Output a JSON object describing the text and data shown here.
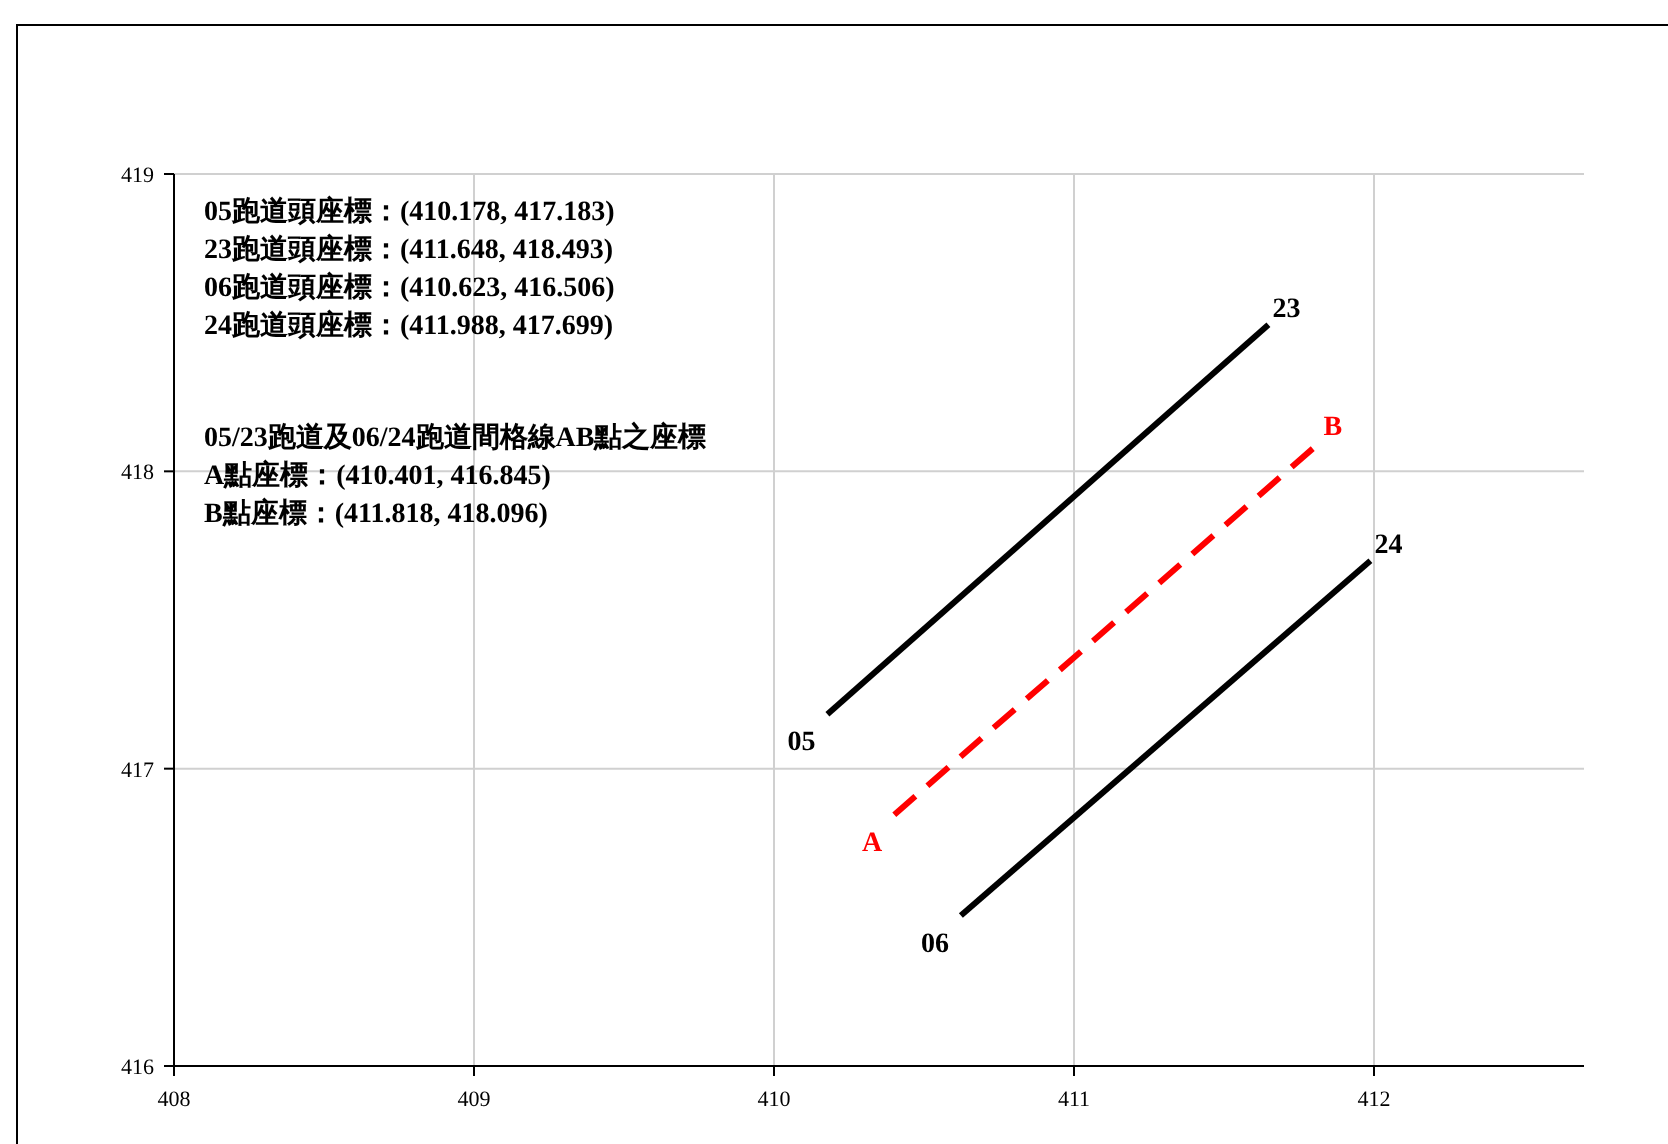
{
  "chart_data": {
    "type": "line",
    "xlim": [
      408,
      412.7
    ],
    "ylim": [
      416,
      419
    ],
    "xticks": [
      408,
      409,
      410,
      411,
      412
    ],
    "yticks": [
      416,
      417,
      418,
      419
    ],
    "grid": true,
    "series": [
      {
        "x": [
          410.178,
          411.648
        ],
        "values": [
          417.183,
          418.493
        ],
        "color": "#000000",
        "line_style": "solid"
      },
      {
        "x": [
          410.623,
          411.988
        ],
        "values": [
          416.506,
          417.699
        ],
        "color": "#000000",
        "line_style": "solid"
      },
      {
        "x": [
          410.401,
          411.818
        ],
        "values": [
          416.845,
          418.096
        ],
        "color": "#ff0000",
        "line_style": "dashed"
      }
    ],
    "annotations": [
      "05跑道頭座標：(410.178, 417.183)",
      "23跑道頭座標：(411.648, 418.493)",
      "06跑道頭座標：(410.623, 416.506)",
      "24跑道頭座標：(411.988, 417.699)",
      "05/23跑道及06/24跑道間格線AB點之座標",
      "A點座標：(410.401, 416.845)",
      "B點座標：(411.818, 418.096)",
      {
        "text": "05",
        "x": 410.178,
        "y": 417.183
      },
      {
        "text": "23",
        "x": 411.648,
        "y": 418.493
      },
      {
        "text": "06",
        "x": 410.623,
        "y": 416.506
      },
      {
        "text": "24",
        "x": 411.988,
        "y": 417.699
      },
      {
        "text": "A",
        "x": 410.401,
        "y": 416.845
      },
      {
        "text": "B",
        "x": 411.818,
        "y": 418.096
      }
    ]
  }
}
